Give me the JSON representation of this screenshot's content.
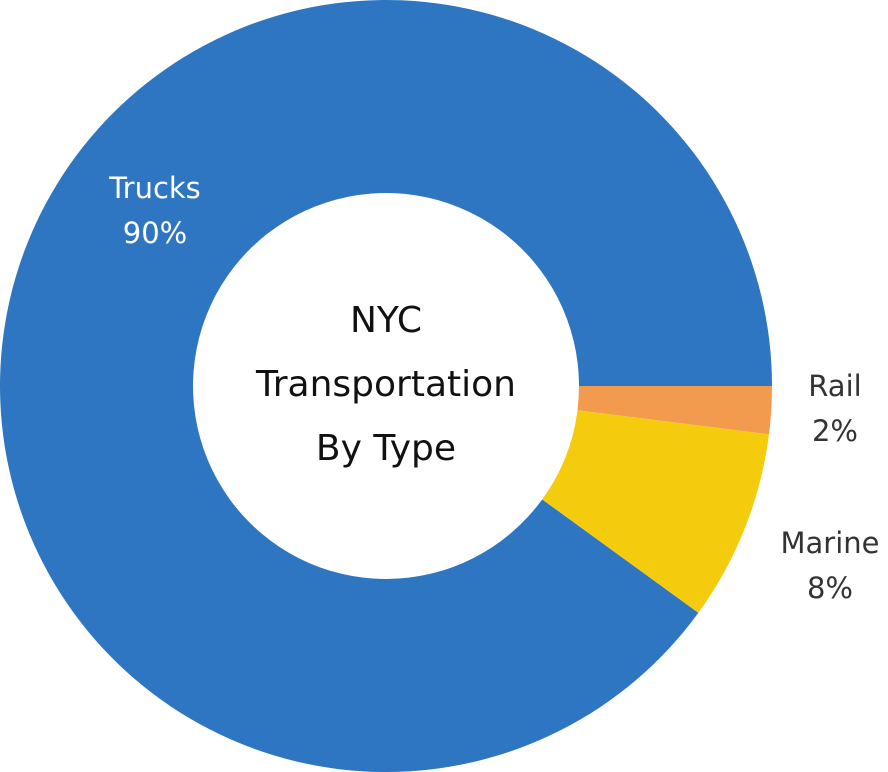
{
  "chart_data": {
    "type": "donut",
    "title": [
      "NYC",
      "Transportation",
      "By Type"
    ],
    "categories": [
      "Rail",
      "Marine",
      "Trucks"
    ],
    "values": [
      2,
      8,
      90
    ],
    "value_labels": [
      "2%",
      "8%",
      "90%"
    ],
    "colors": [
      "#f29a4e",
      "#f5cc0d",
      "#2e76c1"
    ]
  }
}
